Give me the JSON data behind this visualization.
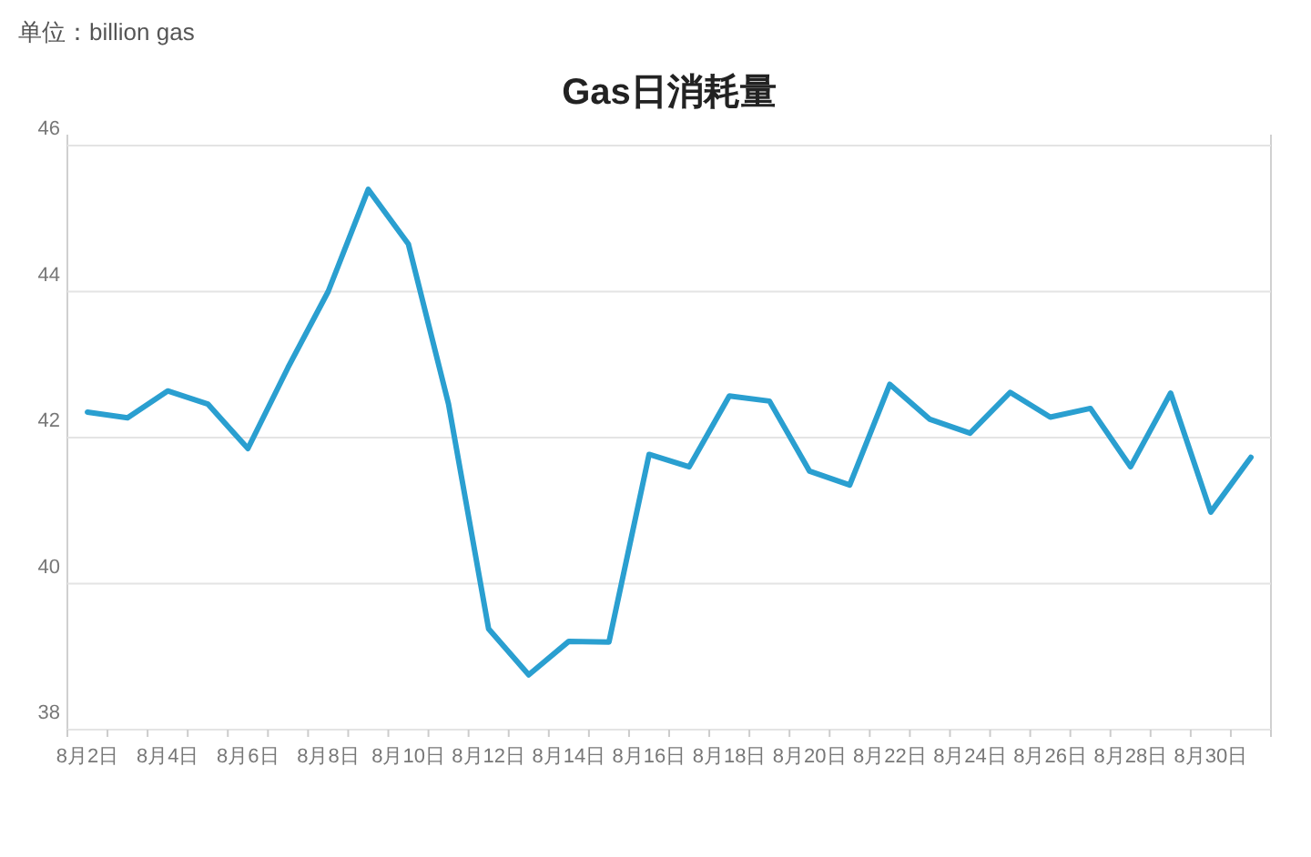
{
  "chart_data": {
    "type": "line",
    "title": "Gas日消耗量",
    "annotations": [
      "单位：billion gas"
    ],
    "categories": [
      "8月2日",
      null,
      "8月4日",
      null,
      "8月6日",
      null,
      "8月8日",
      null,
      "8月10日",
      null,
      "8月12日",
      null,
      "8月14日",
      null,
      "8月16日",
      null,
      "8月18日",
      null,
      "8月20日",
      null,
      "8月22日",
      null,
      "8月24日",
      null,
      "8月26日",
      null,
      "8月28日",
      null,
      "8月30日",
      null
    ],
    "series": [
      {
        "color": "#2a9fd0",
        "values": [
          42.35,
          42.27,
          42.64,
          42.46,
          41.85,
          42.96,
          44.0,
          45.4,
          44.65,
          42.46,
          39.38,
          38.75,
          39.21,
          39.2,
          41.77,
          41.6,
          42.57,
          42.5,
          41.54,
          41.35,
          42.73,
          42.25,
          42.06,
          42.62,
          42.28,
          42.4,
          41.6,
          42.61,
          40.98,
          41.73
        ]
      }
    ],
    "ylim": [
      38,
      46
    ],
    "yticks": [
      38,
      40,
      42,
      44,
      46
    ],
    "grid": "y",
    "marker": "none",
    "line_style": "solid"
  }
}
